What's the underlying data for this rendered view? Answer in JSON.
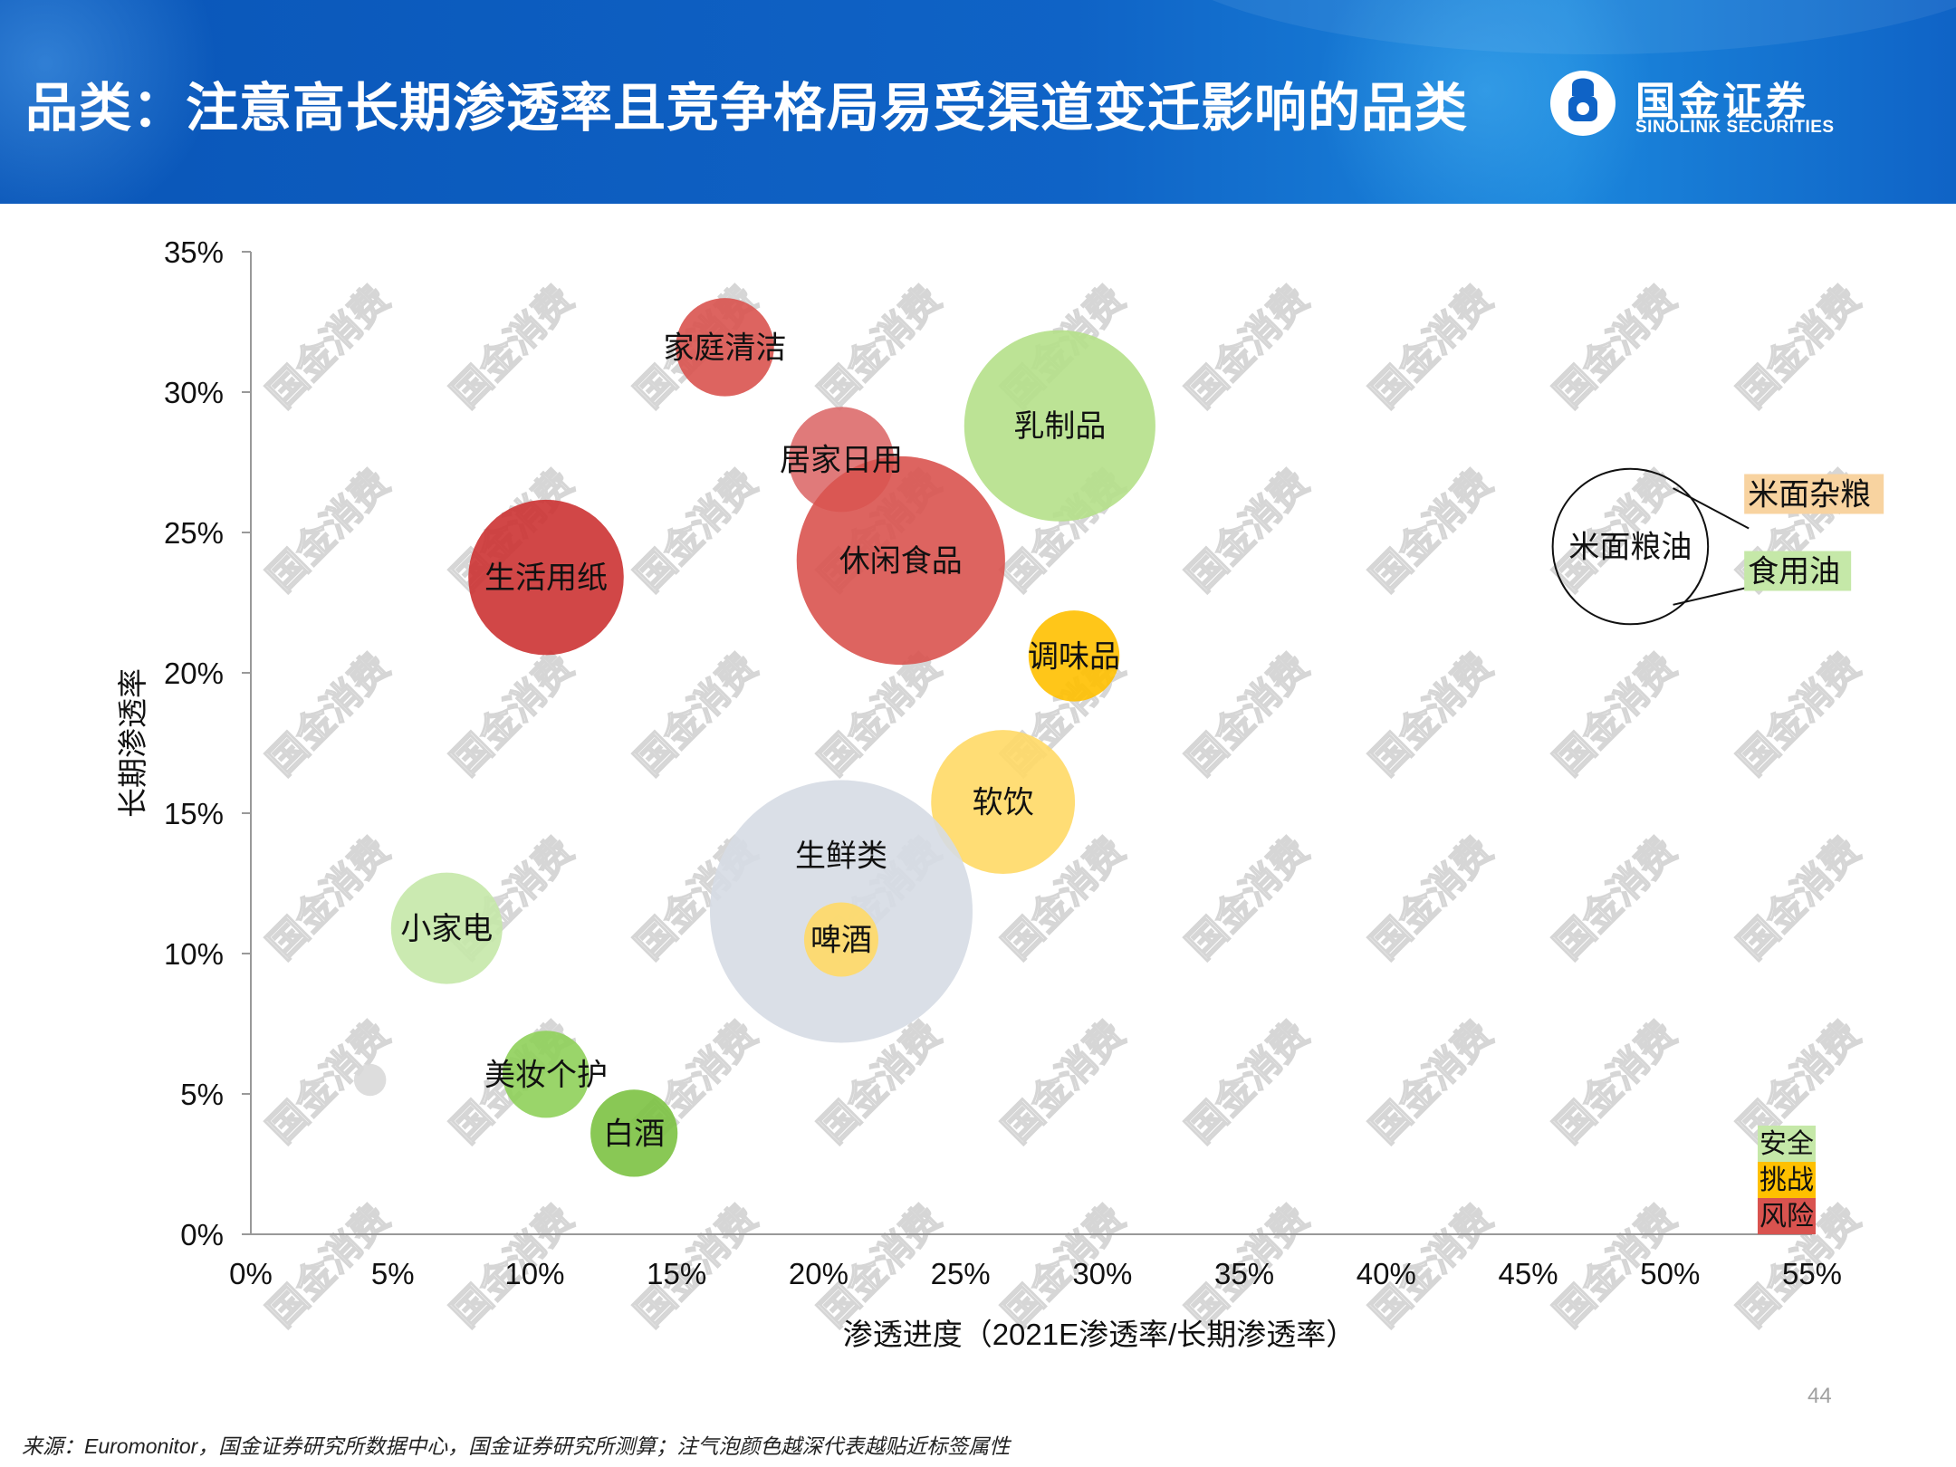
{
  "header": {
    "title": "品类：注意高长期渗透率且竞争格局易受渠道变迁影响的品类",
    "brand_cn": "国金证券",
    "brand_en": "SINOLINK SECURITIES",
    "logo_icon": "sinolink-logo-icon"
  },
  "watermark": "国金消费",
  "chart_data": {
    "type": "bubble",
    "xlabel": "渗透进度（2021E渗透率/长期渗透率）",
    "ylabel": "长期渗透率",
    "xlim": [
      0,
      0.55
    ],
    "ylim": [
      0,
      0.35
    ],
    "x_ticks": [
      "0%",
      "5%",
      "10%",
      "15%",
      "20%",
      "25%",
      "30%",
      "35%",
      "40%",
      "45%",
      "50%",
      "55%"
    ],
    "y_ticks": [
      "0%",
      "5%",
      "10%",
      "15%",
      "20%",
      "25%",
      "30%",
      "35%"
    ],
    "points": [
      {
        "label": "家庭清洁",
        "x": 0.167,
        "y": 0.316,
        "size": 0.14,
        "color": "#d9534f"
      },
      {
        "label": "乳制品",
        "x": 0.285,
        "y": 0.288,
        "size": 0.53,
        "color": "#b5e08a"
      },
      {
        "label": "居家日用",
        "x": 0.208,
        "y": 0.276,
        "size": 0.16,
        "color": "#dd6b6b"
      },
      {
        "label": "休闲食品",
        "x": 0.229,
        "y": 0.24,
        "size": 0.63,
        "color": "#d9534f"
      },
      {
        "label": "生活用纸",
        "x": 0.104,
        "y": 0.234,
        "size": 0.35,
        "color": "#cc3333"
      },
      {
        "label": "调味品",
        "x": 0.29,
        "y": 0.206,
        "size": 0.12,
        "color": "#ffc000"
      },
      {
        "label": "软饮",
        "x": 0.265,
        "y": 0.154,
        "size": 0.3,
        "color": "#ffd966"
      },
      {
        "label": "生鲜类",
        "x": 0.208,
        "y": 0.115,
        "size": 1.0,
        "color": "#d6dce4"
      },
      {
        "label": "啤酒",
        "x": 0.208,
        "y": 0.105,
        "size": 0.08,
        "color": "#ffd966"
      },
      {
        "label": "小家电",
        "x": 0.069,
        "y": 0.109,
        "size": 0.18,
        "color": "#c5e8a8"
      },
      {
        "label": "美妆个护",
        "x": 0.104,
        "y": 0.057,
        "size": 0.11,
        "color": "#8fd05a"
      },
      {
        "label": "白酒",
        "x": 0.135,
        "y": 0.036,
        "size": 0.11,
        "color": "#7cc242"
      },
      {
        "label": "",
        "x": 0.042,
        "y": 0.055,
        "size": 0.015,
        "color": "#d9d9d9"
      },
      {
        "label": "米面粮油",
        "x": 0.486,
        "y": 0.245,
        "size": 0.35,
        "color": "none"
      }
    ],
    "callouts": [
      {
        "label": "米面杂粮",
        "color": "#f8d3a0"
      },
      {
        "label": "食用油",
        "color": "#c5e8a8"
      }
    ],
    "legend": [
      {
        "label": "安全",
        "color": "#c5e8a8"
      },
      {
        "label": "挑战",
        "color": "#ffc000"
      },
      {
        "label": "风险",
        "color": "#d9534f"
      }
    ],
    "legend_position": "bottom-right"
  },
  "footer": {
    "page_number": "44",
    "source": "来源：Euromonitor，国金证券研究所数据中心，国金证券研究所测算；注气泡颜色越深代表越贴近标签属性"
  }
}
